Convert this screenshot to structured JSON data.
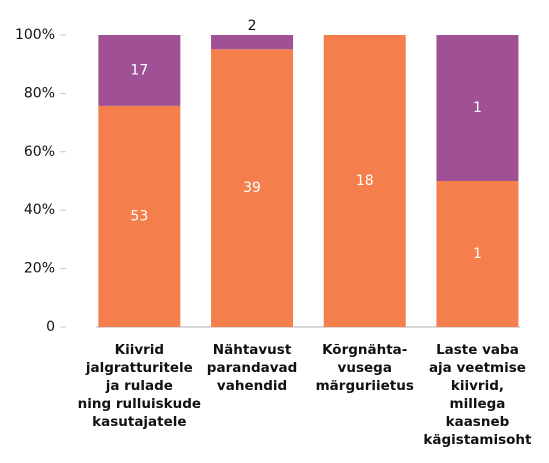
{
  "chart_data": {
    "type": "bar",
    "stacked": "percent",
    "categories": [
      "Kiivrid\njalgratturitele\nja rulade\nning rulluiskude\nkasutajatele",
      "Nähtavust\nparandavad\nvahendid",
      "Kõrgnähta-\nvusega\nmärguriietus",
      "Laste vaba\naja veetmise\nkiivrid,\nmillega\nkaasneb\nkägistamisoht"
    ],
    "series": [
      {
        "color": "#f47f4c",
        "values": [
          53,
          39,
          18,
          1
        ]
      },
      {
        "color": "#a05195",
        "values": [
          17,
          2,
          0,
          1
        ]
      }
    ],
    "ylim": [
      0,
      100
    ],
    "yticks": [
      0,
      {
        "value": 20,
        "label": "20%"
      },
      {
        "value": 40,
        "label": "40%"
      },
      {
        "value": 60,
        "label": "60%"
      },
      {
        "value": 80,
        "label": "80%"
      },
      {
        "value": 100,
        "label": "100%"
      }
    ]
  }
}
